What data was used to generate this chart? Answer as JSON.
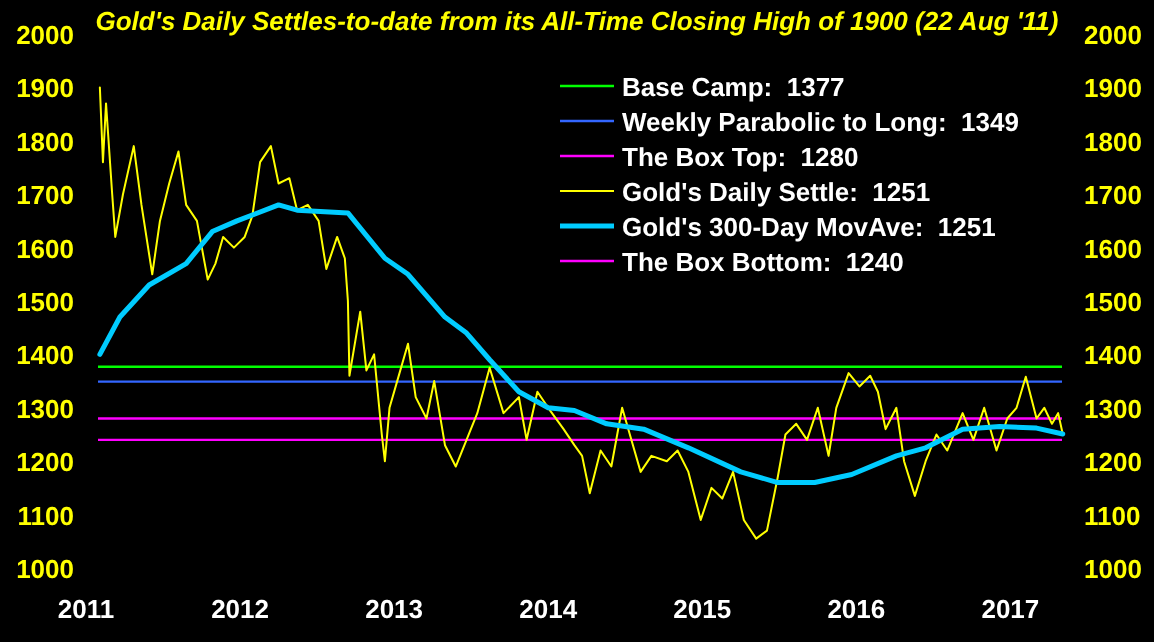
{
  "chart_data": {
    "type": "line",
    "title": "Gold's Daily Settles-to-date from its All-Time Closing High of 1900 (22 Aug '11)",
    "xlim": [
      2011,
      2017.4
    ],
    "xticks": [
      2011,
      2012,
      2013,
      2014,
      2015,
      2016,
      2017
    ],
    "ylim": [
      1000,
      2000
    ],
    "yticks": [
      1000,
      1100,
      1200,
      1300,
      1400,
      1500,
      1600,
      1700,
      1800,
      1900,
      2000
    ],
    "y2lim": [
      1000,
      2000
    ],
    "y2ticks": [
      1000,
      1100,
      1200,
      1300,
      1400,
      1500,
      1600,
      1700,
      1800,
      1900,
      2000
    ],
    "grid": false,
    "legend": "top right",
    "line_style": "solid",
    "series": [
      {
        "name": "Gold's Daily Settle:  1251",
        "color": "#ffff00",
        "x": [
          2011.09,
          2011.11,
          2011.13,
          2011.17,
          2011.19,
          2011.24,
          2011.31,
          2011.36,
          2011.43,
          2011.48,
          2011.54,
          2011.6,
          2011.65,
          2011.72,
          2011.79,
          2011.84,
          2011.89,
          2011.96,
          2012.03,
          2012.08,
          2012.13,
          2012.2,
          2012.25,
          2012.32,
          2012.37,
          2012.44,
          2012.51,
          2012.56,
          2012.63,
          2012.68,
          2012.7,
          2012.71,
          2012.78,
          2012.82,
          2012.87,
          2012.92,
          2012.94,
          2012.97,
          2013.02,
          2013.09,
          2013.14,
          2013.21,
          2013.26,
          2013.33,
          2013.4,
          2013.47,
          2013.54,
          2013.62,
          2013.71,
          2013.81,
          2013.86,
          2013.93,
          2014,
          2014.1,
          2014.17,
          2014.22,
          2014.27,
          2014.34,
          2014.41,
          2014.48,
          2014.53,
          2014.6,
          2014.67,
          2014.77,
          2014.84,
          2014.91,
          2014.99,
          2015.06,
          2015.13,
          2015.2,
          2015.27,
          2015.35,
          2015.42,
          2015.49,
          2015.54,
          2015.61,
          2015.68,
          2015.75,
          2015.82,
          2015.87,
          2015.95,
          2016.02,
          2016.09,
          2016.14,
          2016.19,
          2016.26,
          2016.31,
          2016.38,
          2016.45,
          2016.52,
          2016.59,
          2016.69,
          2016.76,
          2016.83,
          2016.91,
          2016.98,
          2017.04,
          2017.1,
          2017.17,
          2017.22,
          2017.27,
          2017.31,
          2017.34
        ],
        "values": [
          1900,
          1760,
          1870,
          1700,
          1620,
          1700,
          1790,
          1680,
          1550,
          1650,
          1720,
          1780,
          1680,
          1650,
          1540,
          1570,
          1620,
          1600,
          1620,
          1660,
          1760,
          1790,
          1720,
          1730,
          1670,
          1680,
          1650,
          1560,
          1620,
          1580,
          1500,
          1360,
          1480,
          1370,
          1400,
          1250,
          1200,
          1300,
          1350,
          1420,
          1320,
          1280,
          1350,
          1230,
          1190,
          1240,
          1290,
          1375,
          1290,
          1320,
          1240,
          1330,
          1300,
          1260,
          1230,
          1210,
          1140,
          1220,
          1190,
          1300,
          1250,
          1180,
          1210,
          1200,
          1220,
          1180,
          1090,
          1150,
          1130,
          1180,
          1090,
          1055,
          1070,
          1170,
          1250,
          1270,
          1240,
          1300,
          1210,
          1300,
          1365,
          1340,
          1360,
          1330,
          1260,
          1300,
          1200,
          1135,
          1200,
          1250,
          1220,
          1290,
          1240,
          1300,
          1220,
          1280,
          1300,
          1358,
          1280,
          1300,
          1270,
          1290,
          1251
        ]
      },
      {
        "name": "Gold's 300-Day MovAve:  1251",
        "color": "#00ccff",
        "x": [
          2011.09,
          2011.22,
          2011.41,
          2011.65,
          2011.82,
          2011.98,
          2012.25,
          2012.37,
          2012.7,
          2012.94,
          2013.09,
          2013.33,
          2013.47,
          2013.62,
          2013.81,
          2014,
          2014.17,
          2014.38,
          2014.62,
          2014.91,
          2015.25,
          2015.49,
          2015.73,
          2015.97,
          2016.26,
          2016.45,
          2016.69,
          2016.93,
          2017.17,
          2017.34
        ],
        "values": [
          1400,
          1470,
          1530,
          1570,
          1630,
          1650,
          1680,
          1670,
          1665,
          1580,
          1550,
          1470,
          1440,
          1390,
          1330,
          1300,
          1295,
          1270,
          1260,
          1225,
          1180,
          1160,
          1160,
          1175,
          1210,
          1225,
          1260,
          1265,
          1262,
          1251
        ]
      }
    ],
    "ref_lines": [
      {
        "axis": "y",
        "value": 1377,
        "label": "Base Camp:  1377",
        "color": "#00ff00"
      },
      {
        "axis": "y",
        "value": 1349,
        "label": "Weekly Parabolic to Long:  1349",
        "color": "#3366ff"
      },
      {
        "axis": "y",
        "value": 1280,
        "label": "The Box Top:  1280",
        "color": "#ff00ff"
      },
      {
        "axis": "y",
        "value": 1240,
        "label": "The Box Bottom:  1240",
        "color": "#ff00ff"
      }
    ]
  }
}
